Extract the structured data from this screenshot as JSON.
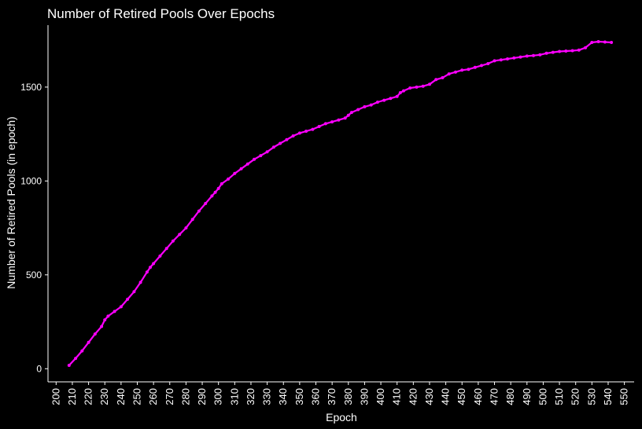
{
  "colors": {
    "background": "#000000",
    "text": "#ffffff",
    "axis": "#ffffff",
    "series": "#ff00ff"
  },
  "chart_data": {
    "type": "line",
    "title": "Number of Retired Pools Over Epochs",
    "xlabel": "Epoch",
    "ylabel": "Number of Retired Pools (in epoch)",
    "xlim": [
      195,
      556
    ],
    "ylim": [
      -70,
      1830
    ],
    "grid": false,
    "legend": "none",
    "x_ticks": [
      200,
      210,
      220,
      230,
      240,
      250,
      260,
      270,
      280,
      290,
      300,
      310,
      320,
      330,
      340,
      350,
      360,
      370,
      380,
      390,
      400,
      410,
      420,
      430,
      440,
      450,
      460,
      470,
      480,
      490,
      500,
      510,
      520,
      530,
      540,
      550
    ],
    "y_ticks": [
      0,
      500,
      1000,
      1500
    ],
    "series": [
      {
        "markers": true,
        "x": [
          208,
          212,
          216,
          220,
          224,
          228,
          230,
          232,
          236,
          240,
          244,
          248,
          252,
          256,
          258,
          260,
          264,
          268,
          272,
          276,
          280,
          284,
          288,
          292,
          296,
          298,
          300,
          302,
          306,
          310,
          314,
          318,
          322,
          326,
          330,
          334,
          338,
          342,
          346,
          350,
          354,
          358,
          362,
          366,
          370,
          374,
          378,
          380,
          382,
          386,
          390,
          394,
          398,
          402,
          406,
          410,
          412,
          414,
          418,
          422,
          426,
          430,
          434,
          438,
          442,
          446,
          450,
          454,
          458,
          462,
          466,
          470,
          474,
          478,
          482,
          486,
          490,
          494,
          498,
          502,
          506,
          510,
          514,
          518,
          522,
          526,
          530,
          534,
          538,
          542
        ],
        "y": [
          18,
          55,
          95,
          140,
          185,
          225,
          260,
          280,
          305,
          330,
          370,
          410,
          460,
          515,
          540,
          560,
          600,
          640,
          680,
          715,
          750,
          795,
          840,
          880,
          920,
          940,
          960,
          985,
          1010,
          1040,
          1065,
          1090,
          1115,
          1135,
          1155,
          1180,
          1200,
          1220,
          1240,
          1255,
          1265,
          1275,
          1290,
          1305,
          1315,
          1325,
          1335,
          1350,
          1365,
          1380,
          1395,
          1405,
          1420,
          1430,
          1440,
          1450,
          1470,
          1480,
          1495,
          1500,
          1505,
          1515,
          1540,
          1550,
          1570,
          1580,
          1590,
          1595,
          1605,
          1615,
          1625,
          1640,
          1645,
          1650,
          1655,
          1660,
          1665,
          1668,
          1672,
          1680,
          1685,
          1690,
          1692,
          1694,
          1697,
          1710,
          1738,
          1742,
          1740,
          1738
        ]
      }
    ]
  }
}
